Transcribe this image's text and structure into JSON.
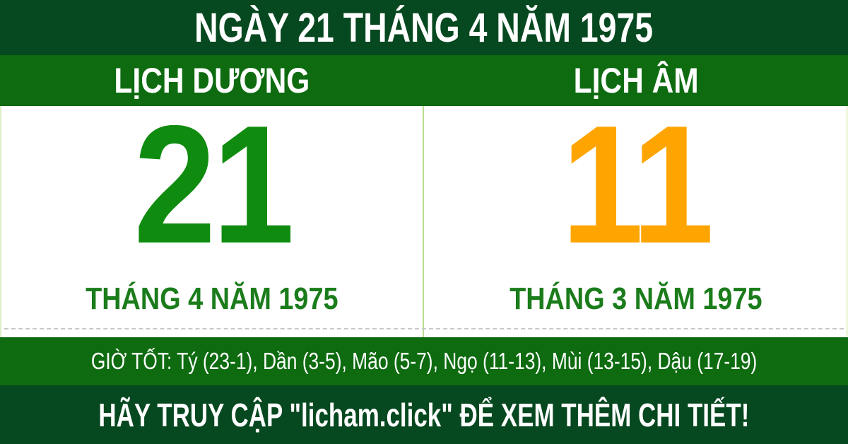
{
  "banner": {
    "title": "NGÀY 21 THÁNG 4 NĂM 1975"
  },
  "columns": {
    "solar": {
      "header": "LỊCH DƯƠNG",
      "day": "21",
      "caption": "THÁNG 4 NĂM 1975"
    },
    "lunar": {
      "header": "LỊCH ÂM",
      "day": "11",
      "caption": "THÁNG 3 NĂM 1975"
    }
  },
  "good_hours": {
    "text": "GIỜ TỐT: Tý (23-1), Dần (3-5), Mão (5-7), Ngọ (11-13), Mùi (13-15), Dậu (17-19)"
  },
  "footer": {
    "cta": "HÃY TRUY CẬP \"licham.click\" ĐỂ XEM THÊM CHI TIẾT!"
  },
  "colors": {
    "dark_green": "#06481f",
    "medium_green": "#0e6b10",
    "solar_day_green": "#0f8c0f",
    "lunar_day_orange": "#ffa502",
    "caption_green": "#1b7c1b",
    "divider_light_green": "#b9dc8c"
  }
}
